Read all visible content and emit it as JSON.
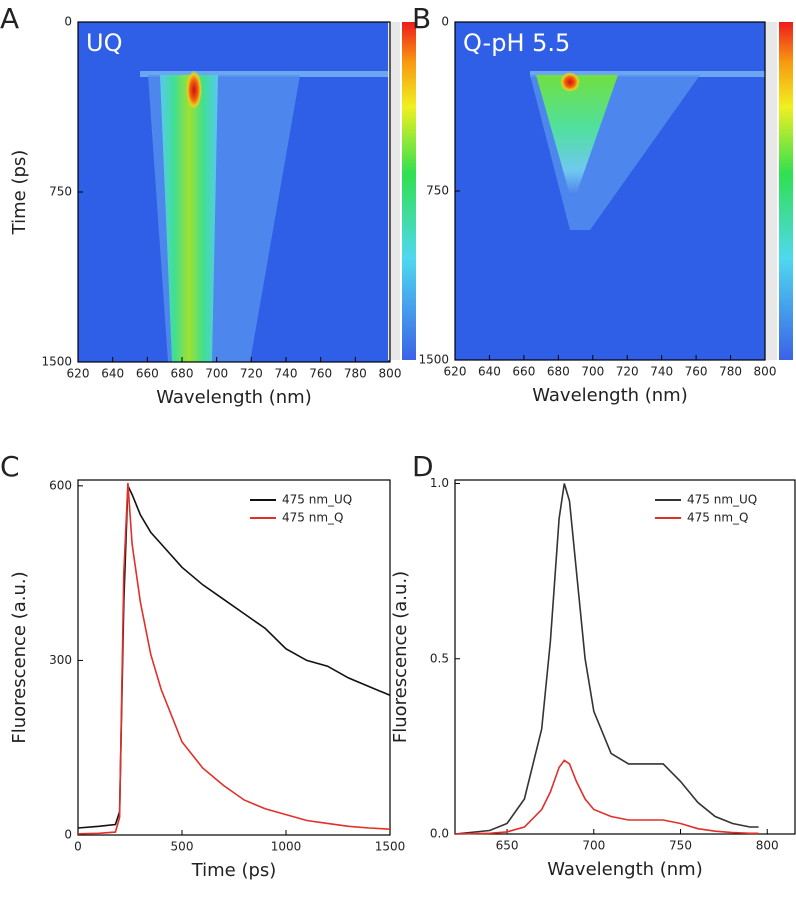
{
  "chart_data": [
    {
      "type": "heatmap",
      "panel_label": "A",
      "annotation": "UQ",
      "x_label": "Wavelength (nm)",
      "y_label": "Time (ps)",
      "xlim": [
        620,
        800
      ],
      "xticks": [
        620,
        640,
        660,
        680,
        700,
        720,
        740,
        760,
        780,
        800
      ],
      "ylim": [
        0,
        1500
      ],
      "yticks": [
        0,
        750,
        1500
      ],
      "y_inverted": true
    },
    {
      "type": "heatmap",
      "panel_label": "B",
      "annotation": "Q-pH 5.5",
      "x_label": "Wavelength (nm)",
      "xlim": [
        620,
        800
      ],
      "xticks": [
        620,
        640,
        660,
        680,
        700,
        720,
        740,
        760,
        780,
        800
      ],
      "ylim": [
        0,
        1500
      ],
      "yticks": [
        0,
        750,
        1500
      ],
      "y_inverted": true
    },
    {
      "type": "line",
      "panel_label": "C",
      "x_label": "Time (ps)",
      "y_label": "Fluorescence (a.u.)",
      "xlim": [
        0,
        1500
      ],
      "xticks": [
        0,
        500,
        1000,
        1500
      ],
      "ylim": [
        0,
        610
      ],
      "yticks": [
        0,
        300,
        600
      ],
      "legend": "top right",
      "x": [
        0,
        100,
        180,
        200,
        220,
        240,
        260,
        300,
        350,
        400,
        500,
        600,
        700,
        800,
        900,
        1000,
        1100,
        1200,
        1300,
        1400,
        1500
      ],
      "series": [
        {
          "name": "475 nm_UQ",
          "color": "#111111",
          "values": [
            12,
            15,
            18,
            40,
            400,
            600,
            585,
            550,
            520,
            500,
            460,
            430,
            405,
            380,
            355,
            320,
            300,
            290,
            270,
            255,
            240
          ]
        },
        {
          "name": "475 nm_Q",
          "color": "#e0302a",
          "values": [
            2,
            3,
            5,
            30,
            450,
            605,
            500,
            400,
            310,
            250,
            160,
            115,
            85,
            60,
            45,
            35,
            25,
            20,
            15,
            12,
            10
          ]
        }
      ]
    },
    {
      "type": "line",
      "panel_label": "D",
      "x_label": "Wavelength (nm)",
      "y_label": "Fluorescence (a.u.)",
      "xlim": [
        620,
        816
      ],
      "xticks": [
        650,
        700,
        750,
        800
      ],
      "ylim": [
        0,
        1.01
      ],
      "yticks": [
        {
          "value": 0,
          "label": "0.0"
        },
        {
          "value": 0.5,
          "label": "0.5"
        },
        {
          "value": 1,
          "label": "1.0"
        }
      ],
      "legend": "top right",
      "x": [
        620,
        640,
        650,
        660,
        670,
        675,
        680,
        683,
        686,
        690,
        695,
        700,
        710,
        720,
        730,
        740,
        750,
        760,
        770,
        780,
        790,
        795
      ],
      "series": [
        {
          "name": "475 nm_UQ",
          "color": "#333333",
          "values": [
            0,
            0.01,
            0.03,
            0.1,
            0.3,
            0.55,
            0.9,
            1.0,
            0.95,
            0.75,
            0.5,
            0.35,
            0.23,
            0.2,
            0.2,
            0.2,
            0.15,
            0.09,
            0.05,
            0.03,
            0.02,
            0.02
          ]
        },
        {
          "name": "475 nm_Q",
          "color": "#e0302a",
          "values": [
            0,
            0.002,
            0.006,
            0.02,
            0.07,
            0.12,
            0.19,
            0.21,
            0.2,
            0.15,
            0.1,
            0.07,
            0.05,
            0.04,
            0.04,
            0.04,
            0.03,
            0.015,
            0.008,
            0.004,
            0.002,
            0.002
          ]
        }
      ]
    }
  ]
}
